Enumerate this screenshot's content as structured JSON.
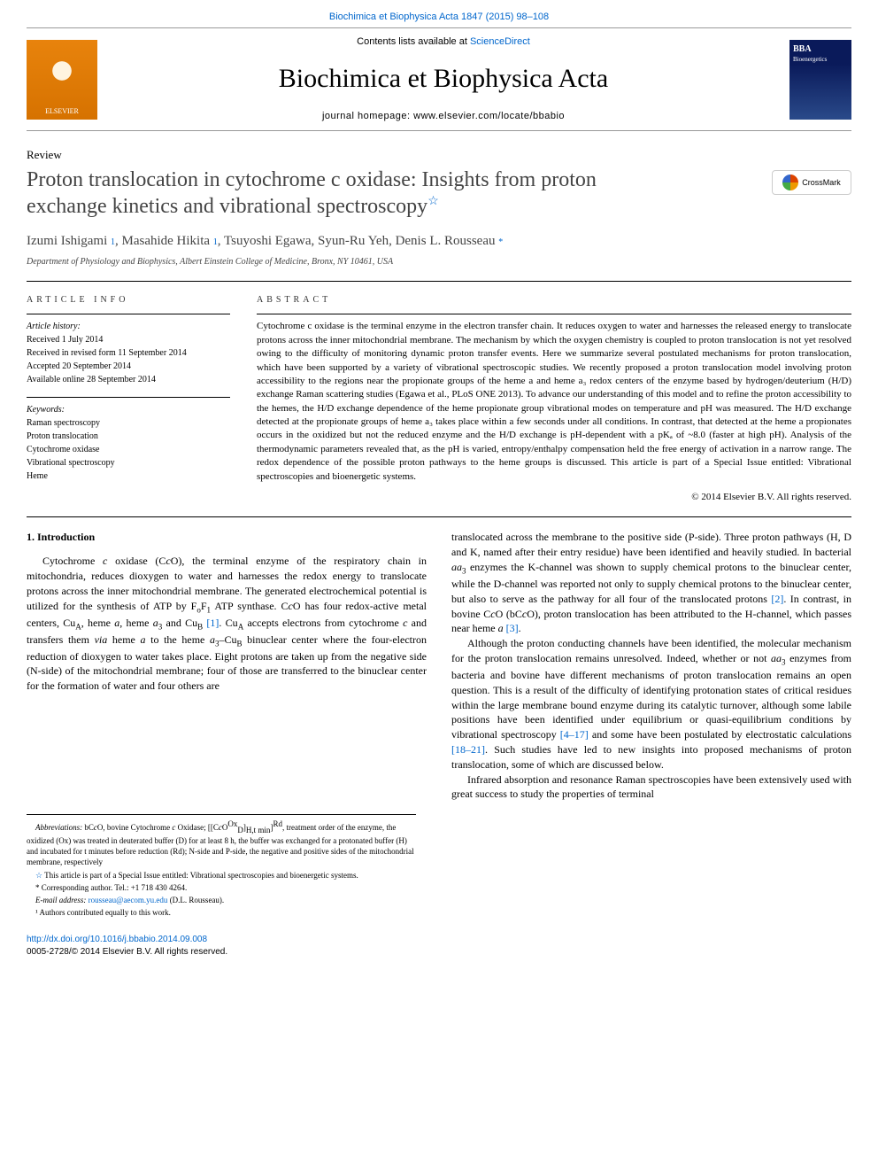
{
  "header": {
    "journal_link": "Biochimica et Biophysica Acta 1847 (2015) 98–108",
    "contents_prefix": "Contents lists available at ",
    "contents_link": "ScienceDirect",
    "journal_name": "Biochimica et Biophysica Acta",
    "homepage_prefix": "journal homepage: ",
    "homepage_url": "www.elsevier.com/locate/bbabio",
    "elsevier_label": "ELSEVIER",
    "cover_label": "BBA",
    "cover_sublabel": "Bioenergetics"
  },
  "article": {
    "type": "Review",
    "title_line1": "Proton translocation in cytochrome c oxidase: Insights from proton",
    "title_line2": "exchange kinetics and vibrational spectroscopy",
    "crossmark": "CrossMark",
    "authors": "Izumi Ishigami ¹, Masahide Hikita ¹, Tsuyoshi Egawa, Syun-Ru Yeh, Denis L. Rousseau *",
    "affiliation": "Department of Physiology and Biophysics, Albert Einstein College of Medicine, Bronx, NY 10461, USA"
  },
  "info": {
    "label": "article info",
    "history_title": "Article history:",
    "history": [
      "Received 1 July 2014",
      "Received in revised form 11 September 2014",
      "Accepted 20 September 2014",
      "Available online 28 September 2014"
    ],
    "keywords_title": "Keywords:",
    "keywords": [
      "Raman spectroscopy",
      "Proton translocation",
      "Cytochrome oxidase",
      "Vibrational spectroscopy",
      "Heme"
    ]
  },
  "abstract": {
    "label": "abstract",
    "text": "Cytochrome c oxidase is the terminal enzyme in the electron transfer chain. It reduces oxygen to water and harnesses the released energy to translocate protons across the inner mitochondrial membrane. The mechanism by which the oxygen chemistry is coupled to proton translocation is not yet resolved owing to the difficulty of monitoring dynamic proton transfer events. Here we summarize several postulated mechanisms for proton translocation, which have been supported by a variety of vibrational spectroscopic studies. We recently proposed a proton translocation model involving proton accessibility to the regions near the propionate groups of the heme a and heme a₃ redox centers of the enzyme based by hydrogen/deuterium (H/D) exchange Raman scattering studies (Egawa et al., PLoS ONE 2013). To advance our understanding of this model and to refine the proton accessibility to the hemes, the H/D exchange dependence of the heme propionate group vibrational modes on temperature and pH was measured. The H/D exchange detected at the propionate groups of heme a₃ takes place within a few seconds under all conditions. In contrast, that detected at the heme a propionates occurs in the oxidized but not the reduced enzyme and the H/D exchange is pH-dependent with a pKₐ of ~8.0 (faster at high pH). Analysis of the thermodynamic parameters revealed that, as the pH is varied, entropy/enthalpy compensation held the free energy of activation in a narrow range. The redox dependence of the possible proton pathways to the heme groups is discussed. This article is part of a Special Issue entitled: Vibrational spectroscopies and bioenergetic systems.",
    "copyright": "© 2014 Elsevier B.V. All rights reserved."
  },
  "body": {
    "intro_heading": "1. Introduction",
    "left_p1": "Cytochrome c oxidase (CcO), the terminal enzyme of the respiratory chain in mitochondria, reduces dioxygen to water and harnesses the redox energy to translocate protons across the inner mitochondrial membrane. The generated electrochemical potential is utilized for the synthesis of ATP by FₒF₁ ATP synthase. CcO has four redox-active metal centers, Cu_A, heme a, heme a₃ and Cu_B [1]. Cu_A accepts electrons from cytochrome c and transfers them via heme a to the heme a₃–Cu_B binuclear center where the four-electron reduction of dioxygen to water takes place. Eight protons are taken up from the negative side (N-side) of the mitochondrial membrane; four of those are transferred to the binuclear center for the formation of water and four others are",
    "right_p1": "translocated across the membrane to the positive side (P-side). Three proton pathways (H, D and K, named after their entry residue) have been identified and heavily studied. In bacterial aa₃ enzymes the K-channel was shown to supply chemical protons to the binuclear center, while the D-channel was reported not only to supply chemical protons to the binuclear center, but also to serve as the pathway for all four of the translocated protons [2]. In contrast, in bovine CcO (bCcO), proton translocation has been attributed to the H-channel, which passes near heme a [3].",
    "right_p2": "Although the proton conducting channels have been identified, the molecular mechanism for the proton translocation remains unresolved. Indeed, whether or not aa₃ enzymes from bacteria and bovine have different mechanisms of proton translocation remains an open question. This is a result of the difficulty of identifying protonation states of critical residues within the large membrane bound enzyme during its catalytic turnover, although some labile positions have been identified under equilibrium or quasi-equilibrium conditions by vibrational spectroscopy [4–17] and some have been postulated by electrostatic calculations [18–21]. Such studies have led to new insights into proposed mechanisms of proton translocation, some of which are discussed below.",
    "right_p3": "Infrared absorption and resonance Raman spectroscopies have been extensively used with great success to study the properties of terminal"
  },
  "footnotes": {
    "abbrev": "Abbreviations: bCcO, bovine Cytochrome c Oxidase; [[CcOᴼˣ_D]H,t min]ᴿᵈ, treatment order of the enzyme, the oxidized (Ox) was treated in deuterated buffer (D) for at least 8 h, the buffer was exchanged for a protonated buffer (H) and incubated for t minutes before reduction (Rd); N-side and P-side, the negative and positive sides of the mitochondrial membrane, respectively",
    "star": "This article is part of a Special Issue entitled: Vibrational spectroscopies and bioenergetic systems.",
    "corresponding": "* Corresponding author. Tel.: +1 718 430 4264.",
    "email_label": "E-mail address: ",
    "email": "rousseau@aecom.yu.edu",
    "email_suffix": " (D.L. Rousseau).",
    "contrib": "¹ Authors contributed equally to this work."
  },
  "footer": {
    "doi": "http://dx.doi.org/10.1016/j.bbabio.2014.09.008",
    "issn": "0005-2728/© 2014 Elsevier B.V. All rights reserved."
  },
  "colors": {
    "link": "#0066cc",
    "text": "#000000",
    "muted": "#444444"
  }
}
